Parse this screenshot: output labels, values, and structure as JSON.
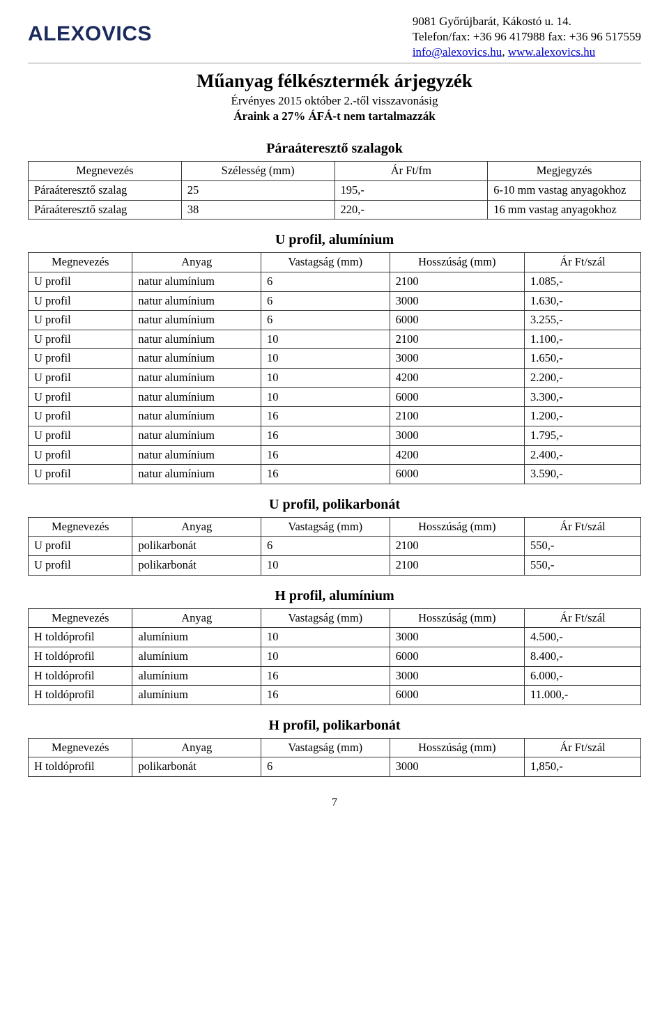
{
  "header": {
    "logo": "ALEXOVICS",
    "address": "9081 Győrújbarát, Kákostó u. 14.",
    "phone": "Telefon/fax: +36 96 417988 fax: +36 96 517559",
    "email": "info@alexovics.hu",
    "web": "www.alexovics.hu"
  },
  "title": "Műanyag félkésztermék árjegyzék",
  "subtitle_line1": "Érvényes 2015 október 2.-től visszavonásig",
  "subtitle_line2": "Áraink a 27% ÁFÁ-t nem tartalmazzák",
  "page_number": "7",
  "sections": {
    "szalagok": {
      "title": "Páraáteresztő szalagok",
      "columns": [
        "Megnevezés",
        "Szélesség (mm)",
        "Ár Ft/fm",
        "Megjegyzés"
      ],
      "col_widths": [
        "25%",
        "25%",
        "25%",
        "25%"
      ],
      "rows": [
        [
          "Páraáteresztő szalag",
          "25",
          "195,-",
          "6-10 mm vastag anyagokhoz"
        ],
        [
          "Páraáteresztő szalag",
          "38",
          "220,-",
          "16 mm vastag anyagokhoz"
        ]
      ]
    },
    "u_alu": {
      "title": "U profil, alumínium",
      "columns": [
        "Megnevezés",
        "Anyag",
        "Vastagság (mm)",
        "Hosszúság (mm)",
        "Ár Ft/szál"
      ],
      "col_widths": [
        "17%",
        "21%",
        "21%",
        "22%",
        "19%"
      ],
      "rows": [
        [
          "U profil",
          "natur alumínium",
          "6",
          "2100",
          "1.085,-"
        ],
        [
          "U profil",
          "natur alumínium",
          "6",
          "3000",
          "1.630,-"
        ],
        [
          "U profil",
          "natur alumínium",
          "6",
          "6000",
          "3.255,-"
        ],
        [
          "U profil",
          "natur alumínium",
          "10",
          "2100",
          "1.100,-"
        ],
        [
          "U profil",
          "natur alumínium",
          "10",
          "3000",
          "1.650,-"
        ],
        [
          "U profil",
          "natur alumínium",
          "10",
          "4200",
          "2.200,-"
        ],
        [
          "U profil",
          "natur alumínium",
          "10",
          "6000",
          "3.300,-"
        ],
        [
          "U profil",
          "natur alumínium",
          "16",
          "2100",
          "1.200,-"
        ],
        [
          "U profil",
          "natur alumínium",
          "16",
          "3000",
          "1.795,-"
        ],
        [
          "U profil",
          "natur alumínium",
          "16",
          "4200",
          "2.400,-"
        ],
        [
          "U profil",
          "natur alumínium",
          "16",
          "6000",
          "3.590,-"
        ]
      ]
    },
    "u_poly": {
      "title": "U profil, polikarbonát",
      "columns": [
        "Megnevezés",
        "Anyag",
        "Vastagság (mm)",
        "Hosszúság (mm)",
        "Ár Ft/szál"
      ],
      "col_widths": [
        "17%",
        "21%",
        "21%",
        "22%",
        "19%"
      ],
      "rows": [
        [
          "U profil",
          "polikarbonát",
          "6",
          "2100",
          "550,-"
        ],
        [
          "U profil",
          "polikarbonát",
          "10",
          "2100",
          "550,-"
        ]
      ]
    },
    "h_alu": {
      "title": "H profil, alumínium",
      "columns": [
        "Megnevezés",
        "Anyag",
        "Vastagság (mm)",
        "Hosszúság (mm)",
        "Ár Ft/szál"
      ],
      "col_widths": [
        "17%",
        "21%",
        "21%",
        "22%",
        "19%"
      ],
      "rows": [
        [
          "H toldóprofil",
          "alumínium",
          "10",
          "3000",
          "4.500,-"
        ],
        [
          "H toldóprofil",
          "alumínium",
          "10",
          "6000",
          "8.400,-"
        ],
        [
          "H toldóprofil",
          "alumínium",
          "16",
          "3000",
          "6.000,-"
        ],
        [
          "H toldóprofil",
          "alumínium",
          "16",
          "6000",
          "11.000,-"
        ]
      ]
    },
    "h_poly": {
      "title": "H profil, polikarbonát",
      "columns": [
        "Megnevezés",
        "Anyag",
        "Vastagság (mm)",
        "Hosszúság (mm)",
        "Ár Ft/szál"
      ],
      "col_widths": [
        "17%",
        "21%",
        "21%",
        "22%",
        "19%"
      ],
      "rows": [
        [
          "H toldóprofil",
          "polikarbonát",
          "6",
          "3000",
          "1,850,-"
        ]
      ]
    }
  }
}
